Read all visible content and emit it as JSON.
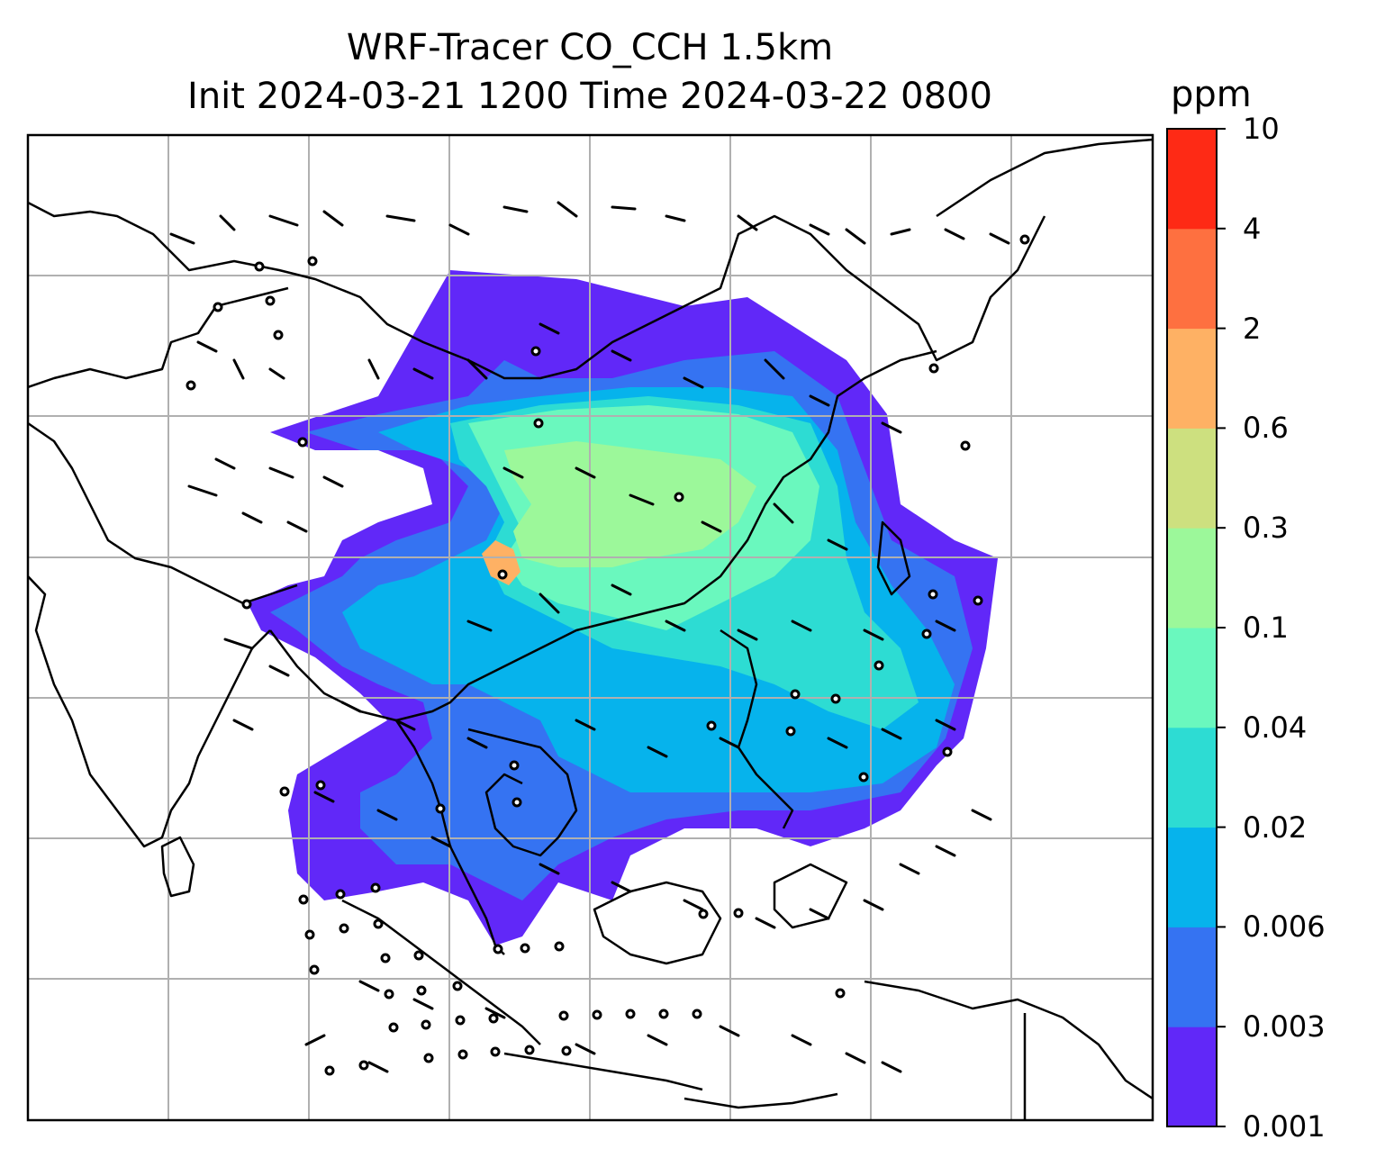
{
  "title": {
    "line1": "WRF-Tracer CO_CCH 1.5km",
    "line2": "Init 2024-03-21 1200 Time 2024-03-22 0800"
  },
  "colorbar": {
    "unit": "ppm",
    "levels": [
      "0.001",
      "0.003",
      "0.006",
      "0.02",
      "0.04",
      "0.1",
      "0.3",
      "0.6",
      "2",
      "4",
      "10"
    ],
    "colors": [
      "#6128f8",
      "#3573f2",
      "#06b3ec",
      "#2ddcd3",
      "#6af8be",
      "#9cf89a",
      "#cde07f",
      "#feb164",
      "#fe7040",
      "#fe2a15"
    ]
  },
  "map": {
    "frame": "lat-lon grid, coastlines, wind barbs",
    "concentration_band_colors": [
      "#6128f8",
      "#3573f2",
      "#06b3ec",
      "#2ddcd3",
      "#6af8be",
      "#9cf89a",
      "#feb164"
    ],
    "coastline_color": "#000000",
    "grid_color": "#b0b0b0"
  }
}
